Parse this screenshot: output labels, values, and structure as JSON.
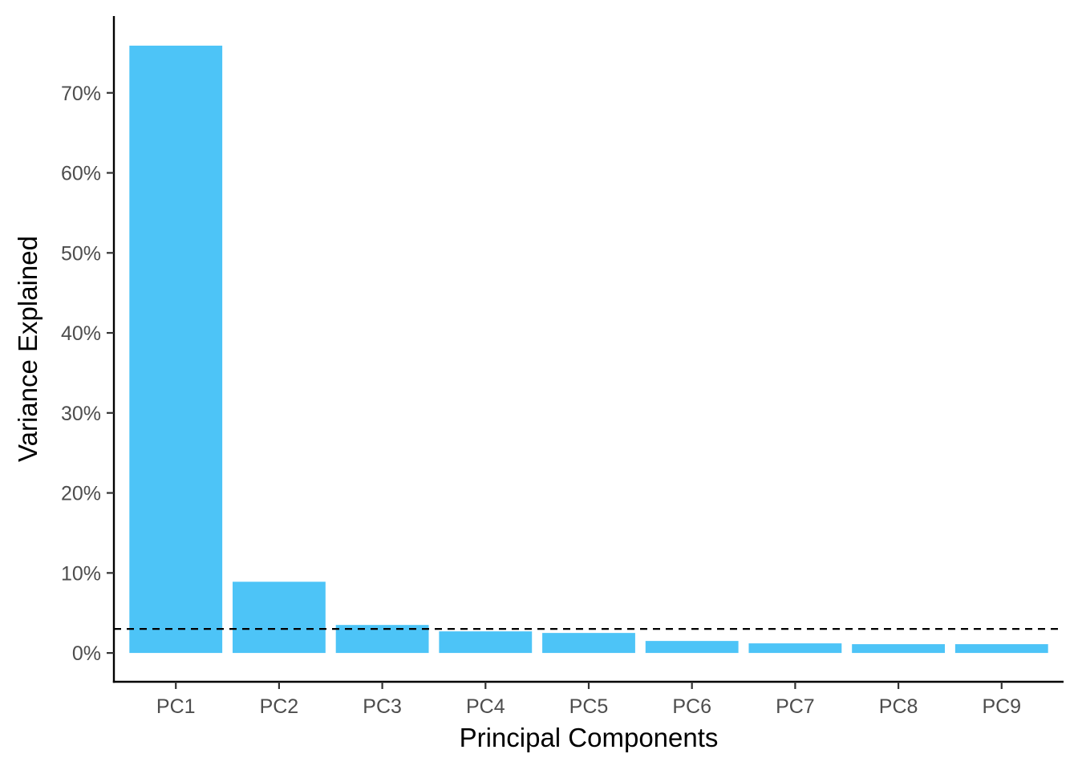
{
  "chart_data": {
    "type": "bar",
    "categories": [
      "PC1",
      "PC2",
      "PC3",
      "PC4",
      "PC5",
      "PC6",
      "PC7",
      "PC8",
      "PC9"
    ],
    "values": [
      75.9,
      8.9,
      3.5,
      2.7,
      2.5,
      1.5,
      1.2,
      1.1,
      1.1
    ],
    "xlabel": "Principal Components",
    "ylabel": "Variance Explained",
    "ylim": [
      -3.6,
      79.6
    ],
    "yticks": [
      0,
      10,
      20,
      30,
      40,
      50,
      60,
      70
    ],
    "ytick_labels": [
      "0%",
      "10%",
      "20%",
      "30%",
      "40%",
      "50%",
      "60%",
      "70%"
    ],
    "reference_line": {
      "value": 3.0,
      "style": "dashed"
    },
    "grid": false,
    "bar_color": "#4DC4F7"
  }
}
